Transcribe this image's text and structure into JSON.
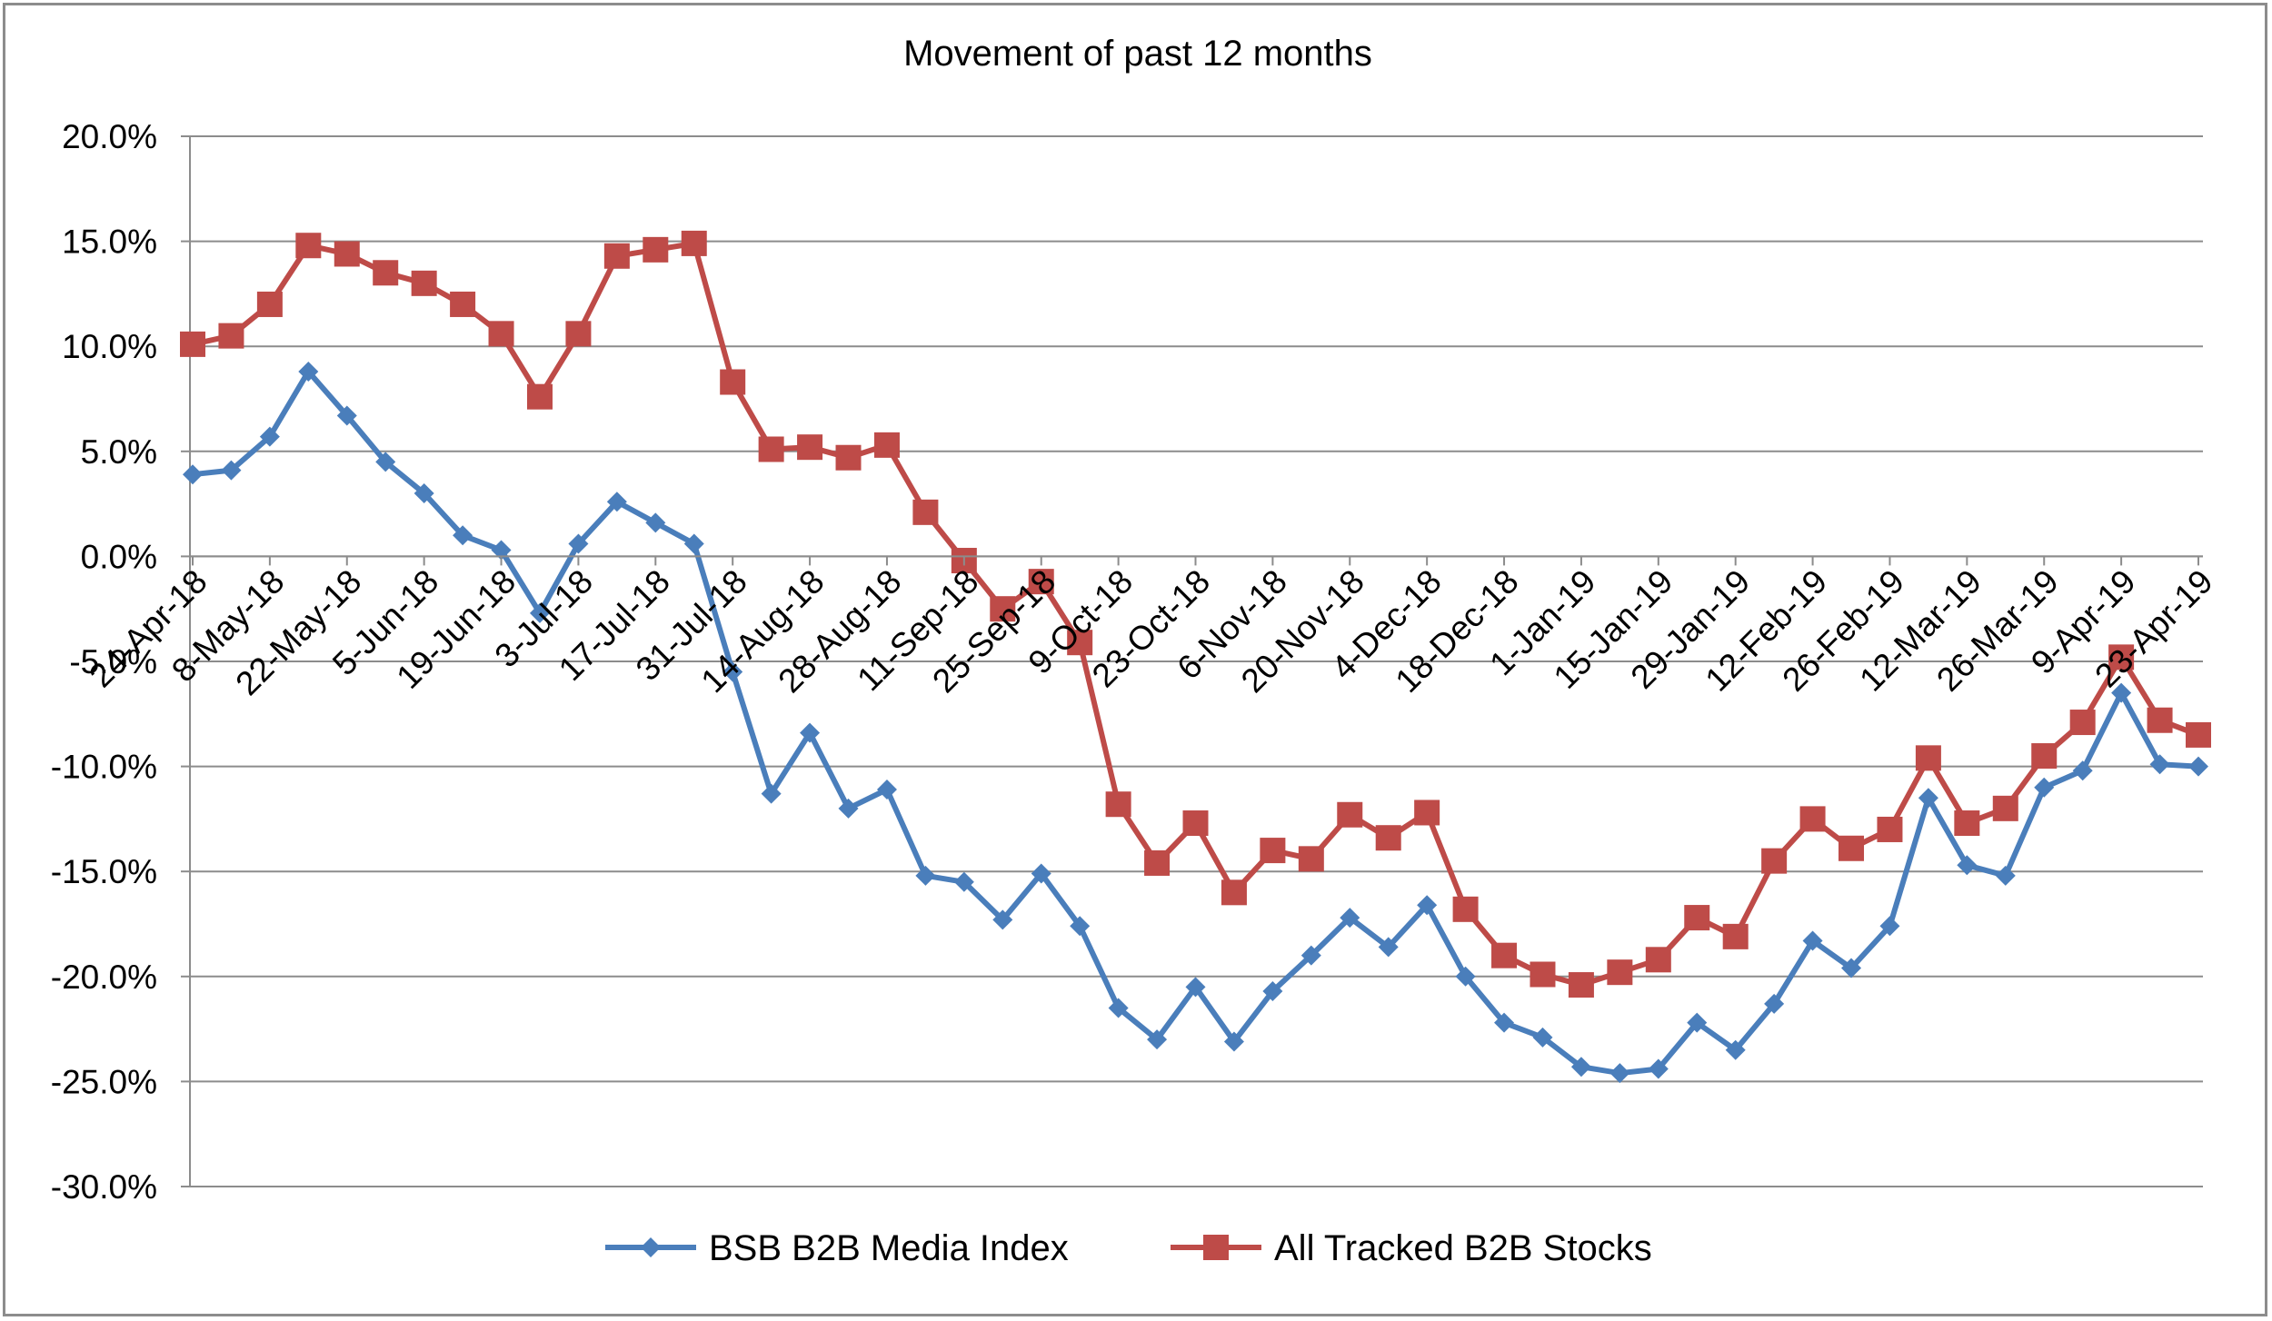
{
  "chart_data": {
    "type": "line",
    "title": "Movement of past 12 months",
    "xlabel": "",
    "ylabel": "",
    "ylim": [
      -30,
      20
    ],
    "y_ticks": [
      "20.0%",
      "15.0%",
      "10.0%",
      "5.0%",
      "0.0%",
      "-5.0%",
      "-10.0%",
      "-15.0%",
      "-20.0%",
      "-25.0%",
      "-30.0%"
    ],
    "y_tick_values": [
      20,
      15,
      10,
      5,
      0,
      -5,
      -10,
      -15,
      -20,
      -25,
      -30
    ],
    "grid": true,
    "legend": "bottom",
    "x_tick_labels": [
      "24-Apr-18",
      "8-May-18",
      "22-May-18",
      "5-Jun-18",
      "19-Jun-18",
      "3-Jul-18",
      "17-Jul-18",
      "31-Jul-18",
      "14-Aug-18",
      "28-Aug-18",
      "11-Sep-18",
      "25-Sep-18",
      "9-Oct-18",
      "23-Oct-18",
      "6-Nov-18",
      "20-Nov-18",
      "4-Dec-18",
      "18-Dec-18",
      "1-Jan-19",
      "15-Jan-19",
      "29-Jan-19",
      "12-Feb-19",
      "26-Feb-19",
      "12-Mar-19",
      "26-Mar-19",
      "9-Apr-19",
      "23-Apr-19"
    ],
    "series": [
      {
        "name": "BSB B2B Media Index",
        "color": "#4a7ebb",
        "marker": "diamond",
        "values": [
          3.9,
          4.1,
          5.7,
          8.8,
          6.7,
          4.5,
          3.0,
          1.0,
          0.3,
          -2.7,
          0.6,
          2.6,
          1.6,
          0.6,
          -5.5,
          -11.3,
          -8.4,
          -12.0,
          -11.1,
          -15.2,
          -15.5,
          -17.3,
          -15.1,
          -17.6,
          -21.5,
          -23.0,
          -20.5,
          -23.1,
          -20.7,
          -19.0,
          -17.2,
          -18.6,
          -16.6,
          -20.0,
          -22.2,
          -22.9,
          -24.3,
          -24.6,
          -24.4,
          -22.2,
          -23.5,
          -21.3,
          -18.3,
          -19.6,
          -17.6,
          -11.5,
          -14.7,
          -15.2,
          -11.0,
          -10.2,
          -6.5,
          -9.9,
          -10.0
        ]
      },
      {
        "name": "All Tracked B2B Stocks",
        "color": "#be4b48",
        "marker": "square",
        "values": [
          10.1,
          10.5,
          12.0,
          14.8,
          14.4,
          13.5,
          13.0,
          12.0,
          10.6,
          7.6,
          10.6,
          14.3,
          14.6,
          14.9,
          8.3,
          5.1,
          5.2,
          4.7,
          5.3,
          2.1,
          -0.2,
          -2.5,
          -1.2,
          -4.1,
          -11.8,
          -14.6,
          -12.7,
          -16.0,
          -14.0,
          -14.4,
          -12.3,
          -13.4,
          -12.2,
          -16.8,
          -19.0,
          -19.9,
          -20.4,
          -19.8,
          -19.2,
          -17.2,
          -18.1,
          -14.5,
          -12.5,
          -13.9,
          -13.0,
          -9.6,
          -12.7,
          -12.0,
          -9.5,
          -7.9,
          -4.8,
          -7.8,
          -8.5
        ]
      }
    ]
  }
}
